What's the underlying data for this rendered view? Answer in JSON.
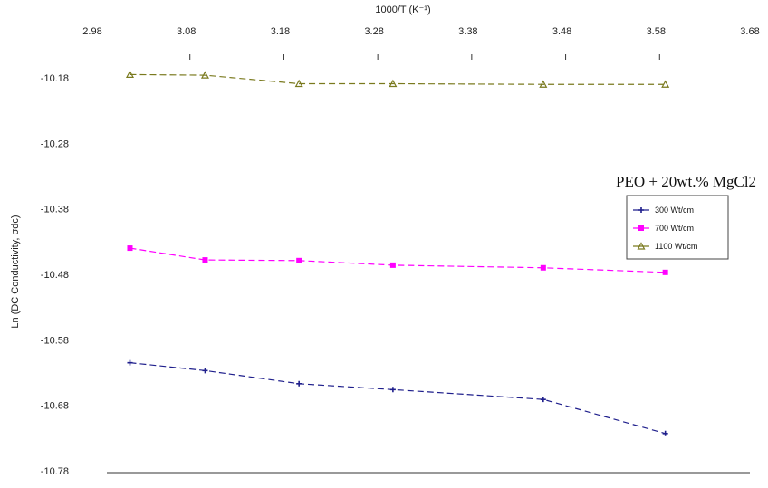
{
  "chart_data": {
    "type": "line",
    "title": "",
    "xlabel": "1000/T (K⁻¹)",
    "ylabel": "Ln (DC Conductivity, σdc)",
    "x_axis_position": "top",
    "xlim": [
      2.98,
      3.68
    ],
    "ylim": [
      -10.78,
      -10.15
    ],
    "xticks": [
      "2.98",
      "3.08",
      "3.18",
      "3.28",
      "3.38",
      "3.48",
      "3.58",
      "3.68"
    ],
    "xtick_values": [
      2.98,
      3.08,
      3.18,
      3.28,
      3.38,
      3.48,
      3.58,
      3.68
    ],
    "yticks": [
      "-10.18",
      "-10.28",
      "-10.38",
      "-10.48",
      "-10.58",
      "-10.68",
      "-10.78"
    ],
    "ytick_values": [
      -10.18,
      -10.28,
      -10.38,
      -10.48,
      -10.58,
      -10.68,
      -10.78
    ],
    "grid": false,
    "legend": {
      "title": "PEO + 20wt.% MgCl2",
      "placement": "right"
    },
    "x": [
      3.02,
      3.1,
      3.2,
      3.3,
      3.46,
      3.59
    ],
    "series": [
      {
        "name": "300 Wt/cm",
        "color": "#1f1f8c",
        "marker": "plus",
        "values": [
          -10.615,
          -10.627,
          -10.647,
          -10.656,
          -10.671,
          -10.723
        ]
      },
      {
        "name": "700 Wt/cm",
        "color": "#ff00ff",
        "marker": "square",
        "values": [
          -10.44,
          -10.458,
          -10.459,
          -10.466,
          -10.47,
          -10.477
        ]
      },
      {
        "name": "1100 Wt/cm",
        "color": "#7a7a1e",
        "marker": "triangle",
        "values": [
          -10.175,
          -10.176,
          -10.189,
          -10.189,
          -10.19,
          -10.19
        ]
      }
    ]
  }
}
